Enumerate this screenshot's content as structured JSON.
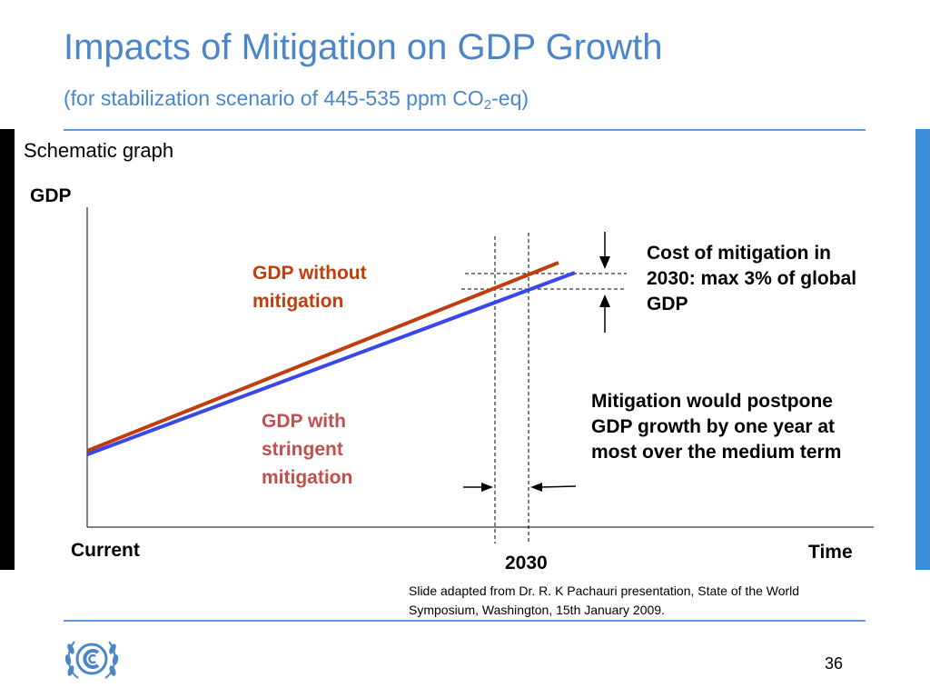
{
  "slide": {
    "title": "Impacts of Mitigation on GDP Growth",
    "subtitle_prefix": "(for stabilization scenario of 445-535 ppm CO",
    "subtitle_sub": "2",
    "subtitle_suffix": "-eq)",
    "schematic_label": "Schematic graph",
    "source_note": "Slide adapted from Dr. R. K Pachauri presentation, State of the World Symposium, Washington, 15th January 2009.",
    "page_number": "36"
  },
  "colors": {
    "title": "#4a86c8",
    "gdp_without": "#c03d0d",
    "gdp_with": "#3a46e6",
    "label_with": "#c0504d",
    "right_bar": "#3d8ed8",
    "rule": "#5f9be0"
  },
  "icons": {
    "logo": "unfccc-logo-icon"
  },
  "chart_data": {
    "type": "line",
    "schematic": true,
    "ylabel": "GDP",
    "xlabel": "Time",
    "x_start_label": "Current",
    "x_marker_label": "2030",
    "series": [
      {
        "name": "GDP without mitigation",
        "label_lines": [
          "GDP without",
          "mitigation"
        ]
      },
      {
        "name": "GDP with stringent mitigation",
        "label_lines": [
          "GDP with",
          "stringent",
          "mitigation"
        ]
      }
    ],
    "annotations": {
      "cost": "Cost of mitigation in 2030: max 3% of global GDP",
      "postpone": "Mitigation would postpone GDP growth by one year at most over the medium term"
    }
  }
}
